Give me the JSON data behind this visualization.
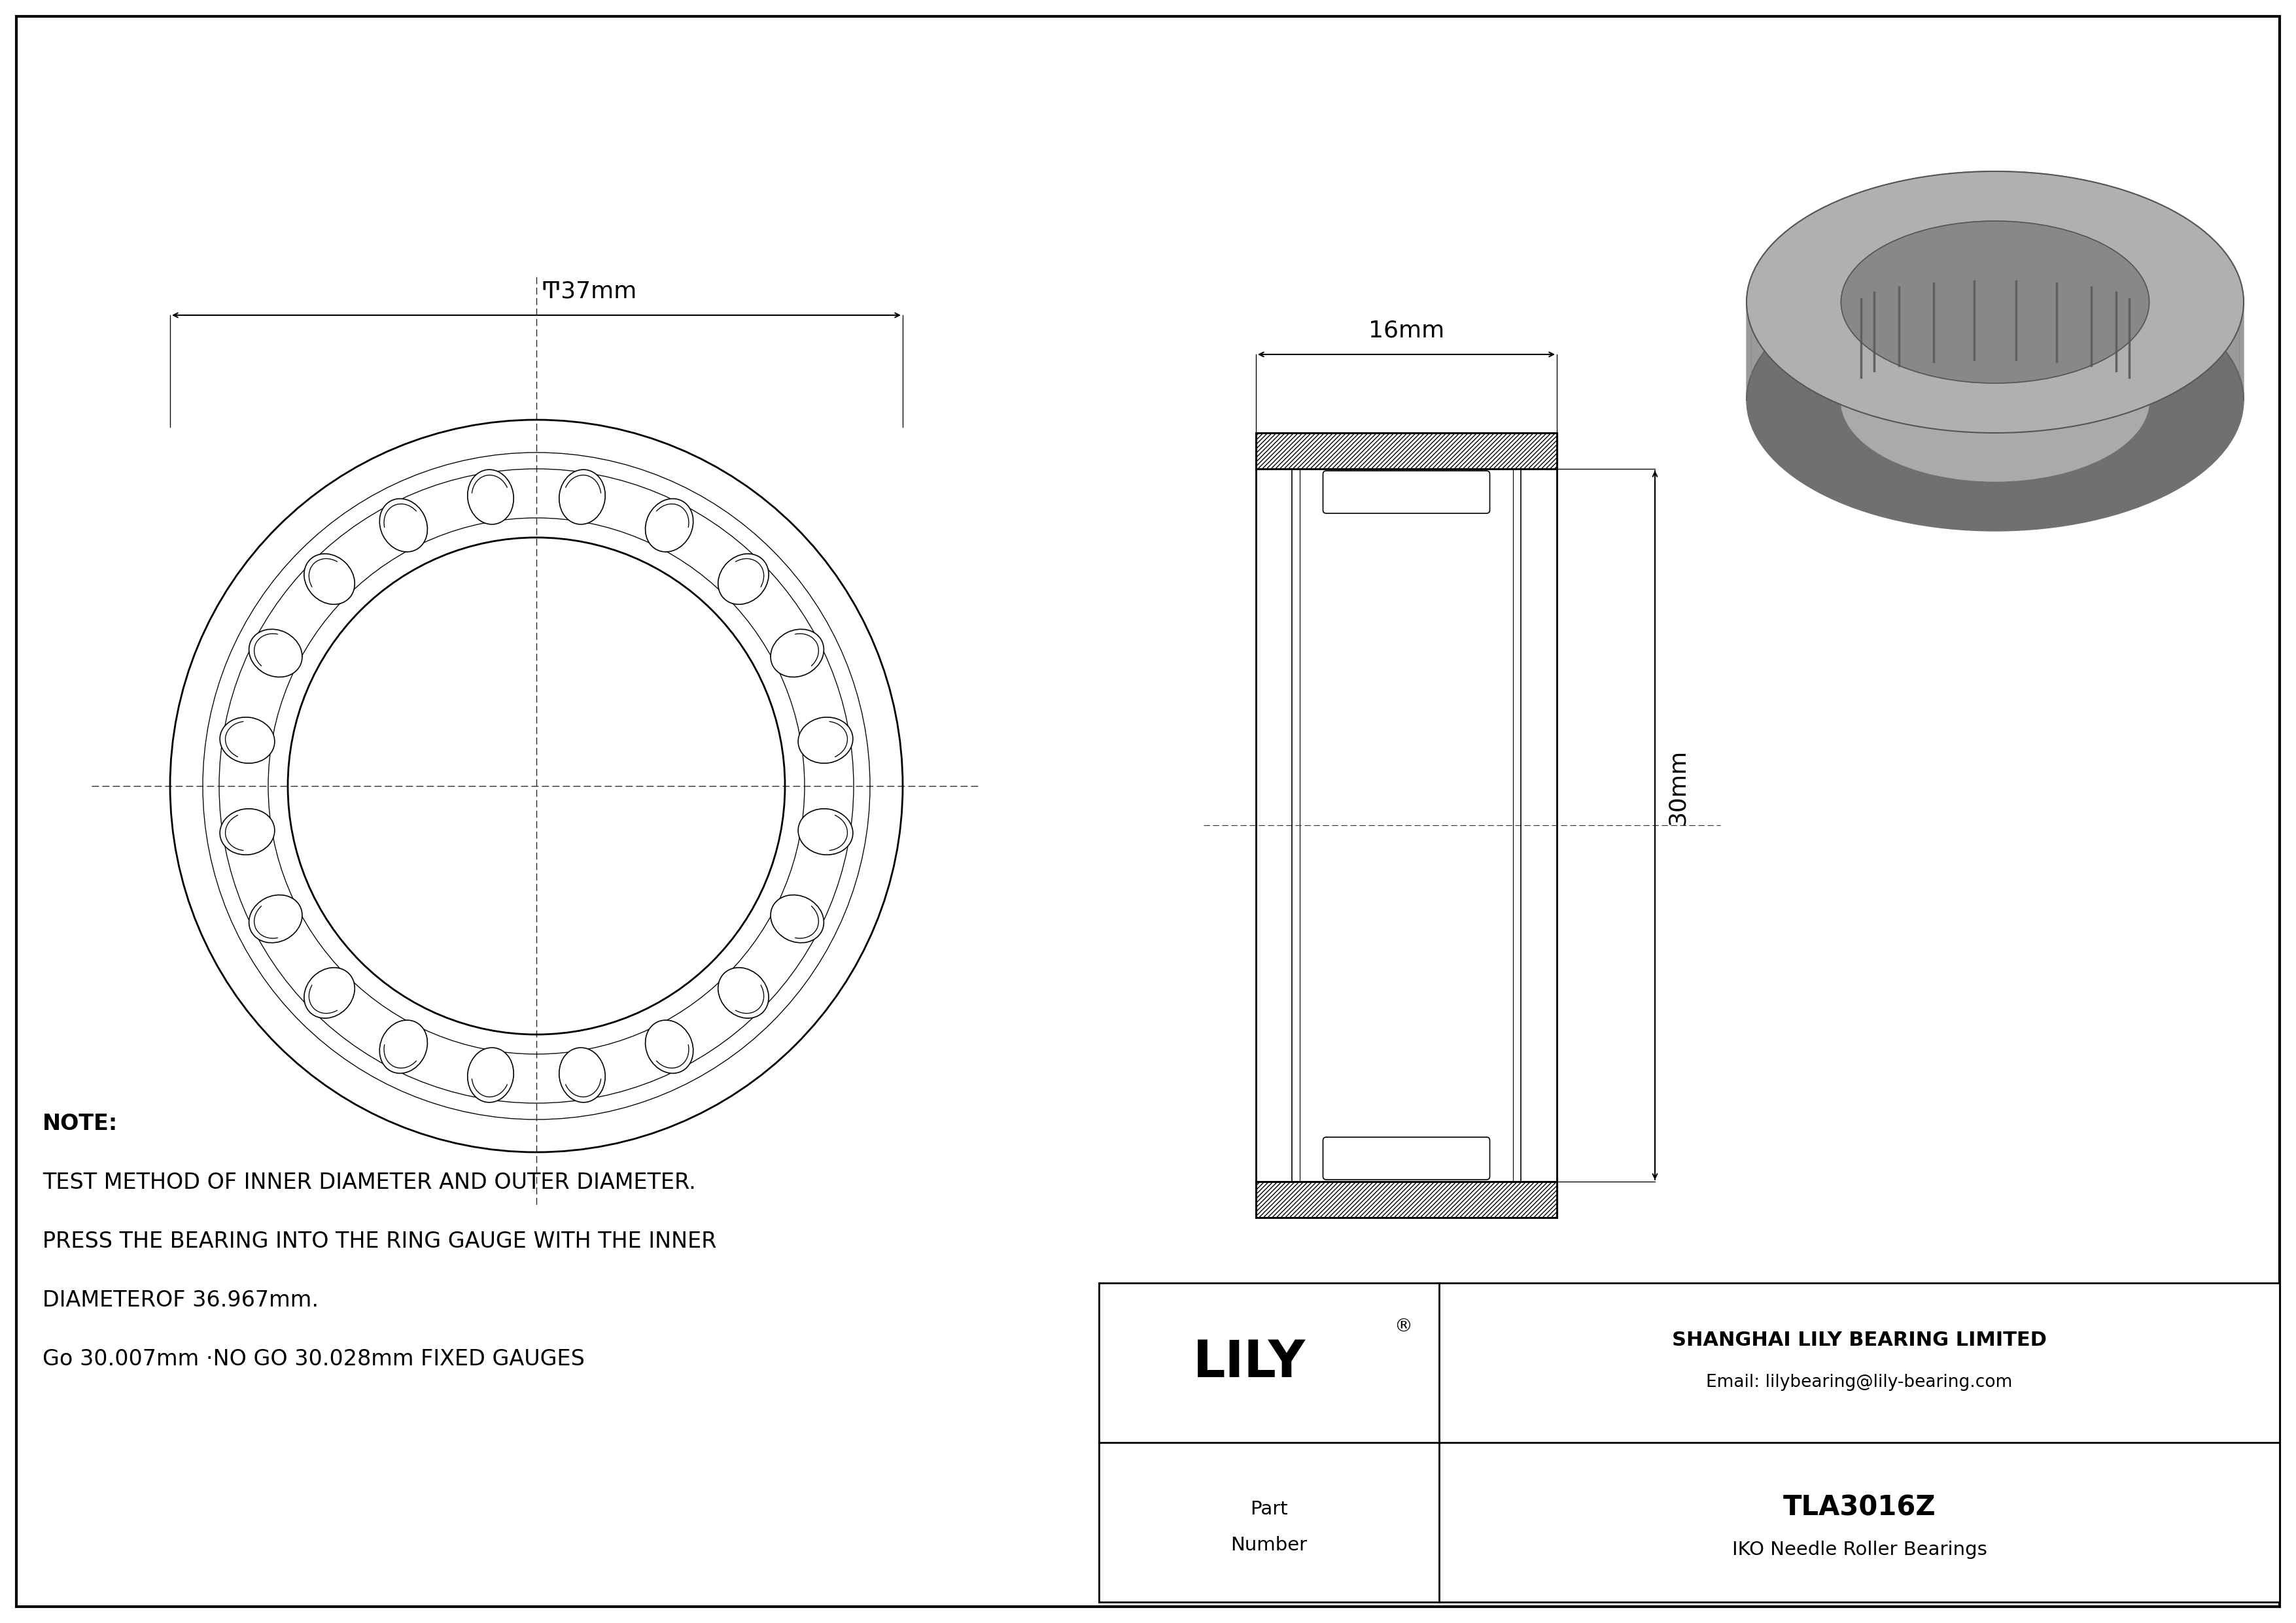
{
  "bg_color": "#ffffff",
  "line_color": "#000000",
  "part_number": "TLA3016Z",
  "bearing_type": "IKO Needle Roller Bearings",
  "company": "SHANGHAI LILY BEARING LIMITED",
  "email": "Email: lilybearing@lily-bearing.com",
  "outer_diameter_label": "Ͳ37mm",
  "width_label": "16mm",
  "height_label": "30mm",
  "note_line1": "NOTE:",
  "note_line2": "TEST METHOD OF INNER DIAMETER AND OUTER DIAMETER.",
  "note_line3": "PRESS THE BEARING INTO THE RING GAUGE WITH THE INNER",
  "note_line4": "DIAMETEROF 36.967mm.",
  "note_line5": "Go 30.007mm ·NO GO 30.028mm FIXED GAUGES",
  "fig_width": 35.1,
  "fig_height": 24.82
}
